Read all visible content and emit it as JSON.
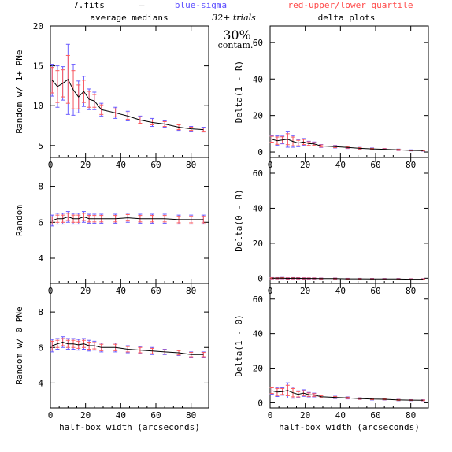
{
  "header": {
    "file": "7.fits",
    "dash": "–",
    "blue_label": "blue-sigma",
    "red_label": "red-upper/lower quartile",
    "left_title": "average medians",
    "right_title": "delta plots",
    "trials": "32+ trials",
    "percent": "30%",
    "contam": "contam."
  },
  "colors": {
    "median_line": "#000000",
    "sigma": "#6a5cff",
    "quartile": "#ff5a5a",
    "frame": "#000000"
  },
  "chart_data": [
    {
      "type": "line",
      "id": "avg-1pne",
      "ylabel": "Random w/ 1+ PNe",
      "xlabel": "",
      "xlim": [
        0,
        90
      ],
      "ylim": [
        3.5,
        20
      ],
      "xticks": [
        0,
        20,
        40,
        60,
        80
      ],
      "xtick_labels_shown": true,
      "yticks": [
        5,
        10,
        15,
        20
      ],
      "x": [
        1,
        4,
        7,
        10,
        13,
        16,
        19,
        22,
        25,
        29,
        37,
        44,
        51,
        58,
        65,
        73,
        80,
        87
      ],
      "y": [
        13.2,
        12.4,
        12.8,
        13.3,
        12.0,
        11.1,
        11.8,
        10.8,
        10.6,
        9.5,
        9.1,
        8.7,
        8.2,
        7.9,
        7.7,
        7.3,
        7.1,
        7.0
      ],
      "sigma": [
        2.0,
        2.6,
        2.1,
        4.4,
        3.2,
        2.0,
        1.9,
        1.3,
        1.1,
        0.8,
        0.7,
        0.6,
        0.5,
        0.5,
        0.4,
        0.4,
        0.3,
        0.3
      ],
      "quartile": [
        1.6,
        2.0,
        1.7,
        3.0,
        2.4,
        1.5,
        1.4,
        1.0,
        0.8,
        0.6,
        0.5,
        0.4,
        0.4,
        0.3,
        0.3,
        0.3,
        0.2,
        0.2
      ]
    },
    {
      "type": "line",
      "id": "avg-random",
      "ylabel": "Random",
      "xlabel": "",
      "xlim": [
        0,
        90
      ],
      "ylim": [
        2.6,
        9.6
      ],
      "xticks": [
        0,
        20,
        40,
        60,
        80
      ],
      "xtick_labels_shown": true,
      "yticks": [
        4,
        6,
        8
      ],
      "x": [
        1,
        4,
        7,
        10,
        13,
        16,
        19,
        22,
        25,
        29,
        37,
        44,
        51,
        58,
        65,
        73,
        80,
        87
      ],
      "y": [
        6.1,
        6.2,
        6.2,
        6.3,
        6.2,
        6.2,
        6.3,
        6.2,
        6.2,
        6.2,
        6.2,
        6.25,
        6.2,
        6.2,
        6.2,
        6.15,
        6.15,
        6.15
      ],
      "sigma": [
        0.3,
        0.3,
        0.3,
        0.3,
        0.3,
        0.3,
        0.3,
        0.25,
        0.25,
        0.25,
        0.25,
        0.25,
        0.25,
        0.25,
        0.25,
        0.25,
        0.25,
        0.25
      ],
      "quartile": [
        0.2,
        0.2,
        0.2,
        0.2,
        0.2,
        0.2,
        0.2,
        0.18,
        0.18,
        0.18,
        0.18,
        0.18,
        0.18,
        0.18,
        0.18,
        0.18,
        0.18,
        0.18
      ]
    },
    {
      "type": "line",
      "id": "avg-0pne",
      "ylabel": "Random w/ 0 PNe",
      "xlabel": "half-box width (arcseconds)",
      "xlim": [
        0,
        90
      ],
      "ylim": [
        2.6,
        9.6
      ],
      "xticks": [
        0,
        20,
        40,
        60,
        80
      ],
      "xtick_labels_shown": true,
      "yticks": [
        4,
        6,
        8
      ],
      "x": [
        1,
        4,
        7,
        10,
        13,
        16,
        19,
        22,
        25,
        29,
        37,
        44,
        51,
        58,
        65,
        73,
        80,
        87
      ],
      "y": [
        6.1,
        6.2,
        6.3,
        6.2,
        6.2,
        6.15,
        6.2,
        6.1,
        6.1,
        6.0,
        6.0,
        5.9,
        5.85,
        5.8,
        5.75,
        5.7,
        5.6,
        5.6
      ],
      "sigma": [
        0.35,
        0.3,
        0.3,
        0.3,
        0.3,
        0.3,
        0.3,
        0.3,
        0.25,
        0.25,
        0.25,
        0.2,
        0.2,
        0.2,
        0.15,
        0.15,
        0.15,
        0.15
      ],
      "quartile": [
        0.25,
        0.2,
        0.2,
        0.2,
        0.2,
        0.2,
        0.2,
        0.2,
        0.18,
        0.18,
        0.18,
        0.15,
        0.15,
        0.15,
        0.12,
        0.12,
        0.12,
        0.12
      ]
    },
    {
      "type": "line",
      "id": "delta-1-R",
      "ylabel": "Delta(1 - R)",
      "xlabel": "",
      "xlim": [
        0,
        90
      ],
      "ylim": [
        -3,
        69
      ],
      "xticks": [
        0,
        20,
        40,
        60,
        80
      ],
      "xtick_labels_shown": true,
      "yticks": [
        0,
        20,
        40,
        60
      ],
      "x": [
        1,
        4,
        7,
        10,
        13,
        16,
        19,
        22,
        25,
        29,
        37,
        44,
        51,
        58,
        65,
        73,
        80,
        87
      ],
      "y": [
        7.0,
        6.2,
        6.6,
        7.0,
        5.8,
        4.9,
        5.5,
        4.6,
        4.4,
        3.3,
        2.9,
        2.5,
        2.0,
        1.7,
        1.5,
        1.2,
        0.9,
        0.8
      ],
      "sigma": [
        2.0,
        2.6,
        2.1,
        4.4,
        3.2,
        2.0,
        1.9,
        1.3,
        1.1,
        0.8,
        0.7,
        0.6,
        0.5,
        0.5,
        0.4,
        0.4,
        0.3,
        0.3
      ],
      "quartile": [
        1.6,
        2.0,
        1.7,
        3.0,
        2.4,
        1.5,
        1.4,
        1.0,
        0.8,
        0.6,
        0.5,
        0.4,
        0.4,
        0.3,
        0.3,
        0.3,
        0.2,
        0.2
      ]
    },
    {
      "type": "line",
      "id": "delta-0-R",
      "ylabel": "Delta(0 - R)",
      "xlabel": "",
      "xlim": [
        0,
        90
      ],
      "ylim": [
        -3,
        69
      ],
      "xticks": [
        0,
        20,
        40,
        60,
        80
      ],
      "xtick_labels_shown": true,
      "yticks": [
        0,
        20,
        40,
        60
      ],
      "x": [
        1,
        4,
        7,
        10,
        13,
        16,
        19,
        22,
        25,
        29,
        37,
        44,
        51,
        58,
        65,
        73,
        80,
        87
      ],
      "y": [
        0.0,
        0.0,
        0.1,
        -0.1,
        0.0,
        -0.05,
        -0.1,
        -0.1,
        -0.1,
        -0.2,
        -0.2,
        -0.35,
        -0.35,
        -0.4,
        -0.45,
        -0.45,
        -0.55,
        -0.55
      ],
      "sigma": [
        0.4,
        0.4,
        0.4,
        0.4,
        0.4,
        0.4,
        0.4,
        0.35,
        0.35,
        0.35,
        0.35,
        0.3,
        0.3,
        0.3,
        0.3,
        0.3,
        0.3,
        0.3
      ],
      "quartile": [
        0.3,
        0.3,
        0.3,
        0.3,
        0.3,
        0.3,
        0.3,
        0.25,
        0.25,
        0.25,
        0.25,
        0.2,
        0.2,
        0.2,
        0.2,
        0.2,
        0.2,
        0.2
      ]
    },
    {
      "type": "line",
      "id": "delta-1-0",
      "ylabel": "Delta(1 - 0)",
      "xlabel": "half-box width (arcseconds)",
      "xlim": [
        0,
        90
      ],
      "ylim": [
        -3,
        69
      ],
      "xticks": [
        0,
        20,
        40,
        60,
        80
      ],
      "xtick_labels_shown": true,
      "yticks": [
        0,
        20,
        40,
        60
      ],
      "x": [
        1,
        4,
        7,
        10,
        13,
        16,
        19,
        22,
        25,
        29,
        37,
        44,
        51,
        58,
        65,
        73,
        80,
        87
      ],
      "y": [
        7.0,
        6.2,
        6.5,
        7.1,
        5.8,
        4.9,
        5.6,
        4.7,
        4.5,
        3.5,
        3.1,
        2.8,
        2.4,
        2.1,
        2.0,
        1.6,
        1.5,
        1.4
      ],
      "sigma": [
        2.0,
        2.6,
        2.1,
        4.4,
        3.2,
        2.0,
        1.9,
        1.3,
        1.1,
        0.8,
        0.7,
        0.6,
        0.5,
        0.5,
        0.4,
        0.4,
        0.3,
        0.3
      ],
      "quartile": [
        1.6,
        2.0,
        1.7,
        3.0,
        2.4,
        1.5,
        1.4,
        1.0,
        0.8,
        0.6,
        0.5,
        0.4,
        0.4,
        0.3,
        0.3,
        0.3,
        0.2,
        0.2
      ]
    }
  ]
}
